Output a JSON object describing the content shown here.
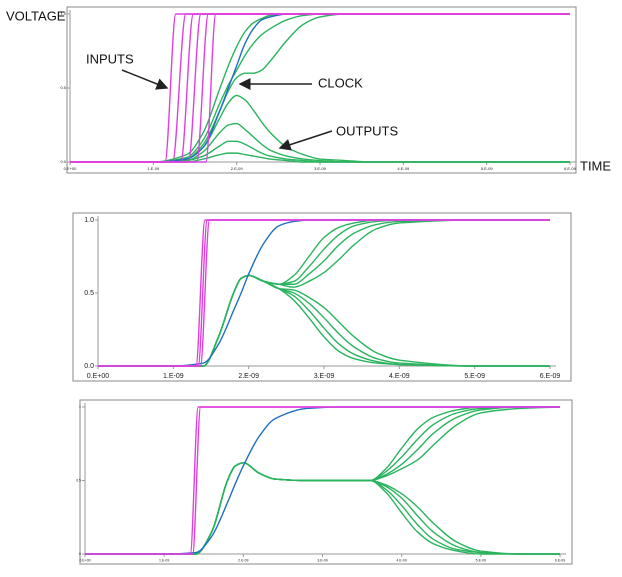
{
  "chart_data": [
    {
      "type": "line",
      "ylabel": "VOLTAGE",
      "xlabel": "TIME",
      "annotations": [
        "INPUTS",
        "CLOCK",
        "OUTPUTS"
      ],
      "xlim": [
        0,
        6e-09
      ],
      "ylim": [
        0,
        1
      ],
      "xticks": [
        {
          "value": 0,
          "label": "0.E+00"
        },
        {
          "value": 1e-09,
          "label": "1.E-09"
        },
        {
          "value": 2e-09,
          "label": "2.E-09"
        },
        {
          "value": 3e-09,
          "label": "3.E-09"
        },
        {
          "value": 4e-09,
          "label": "4.E-09"
        },
        {
          "value": 5e-09,
          "label": "5.E-09"
        },
        {
          "value": 6e-09,
          "label": "6.E-09"
        }
      ],
      "yticks": [
        {
          "value": 0,
          "label": "0.0"
        },
        0.5,
        {
          "value": 1,
          "label": "1.0"
        }
      ],
      "x": [
        0,
        1e-09,
        1.4e-09,
        1.6e-09,
        1.8e-09,
        1.9e-09,
        2e-09,
        2.1e-09,
        2.2e-09,
        2.3e-09,
        2.4e-09,
        2.6e-09,
        2.8e-09,
        3e-09,
        3.3e-09,
        3.6e-09,
        4e-09,
        5e-09,
        6e-09
      ],
      "series": [
        {
          "color": "#2bb35e",
          "values": [
            0,
            0,
            0.05,
            0.2,
            0.5,
            0.65,
            0.78,
            0.88,
            0.94,
            0.97,
            0.99,
            1,
            1,
            1,
            1,
            1,
            1,
            1,
            1
          ]
        },
        {
          "color": "#2bb35e",
          "values": [
            0,
            0,
            0.03,
            0.15,
            0.4,
            0.52,
            0.62,
            0.72,
            0.8,
            0.86,
            0.9,
            0.96,
            0.99,
            1,
            1,
            1,
            1,
            1,
            1
          ]
        },
        {
          "color": "#2bb35e",
          "values": [
            0,
            0,
            0.02,
            0.12,
            0.35,
            0.48,
            0.57,
            0.6,
            0.6,
            0.62,
            0.68,
            0.82,
            0.93,
            0.98,
            1,
            1,
            1,
            1,
            1
          ]
        },
        {
          "color": "#2bb35e",
          "values": [
            0,
            0,
            0.02,
            0.1,
            0.3,
            0.4,
            0.45,
            0.42,
            0.35,
            0.27,
            0.2,
            0.1,
            0.05,
            0.02,
            0.01,
            0,
            0,
            0,
            0
          ]
        },
        {
          "color": "#2bb35e",
          "values": [
            0,
            0,
            0.01,
            0.07,
            0.2,
            0.25,
            0.26,
            0.22,
            0.17,
            0.12,
            0.08,
            0.04,
            0.02,
            0.01,
            0,
            0,
            0,
            0,
            0
          ]
        },
        {
          "color": "#2bb35e",
          "values": [
            0,
            0,
            0.01,
            0.04,
            0.11,
            0.14,
            0.14,
            0.12,
            0.09,
            0.06,
            0.04,
            0.02,
            0.01,
            0,
            0,
            0,
            0,
            0,
            0
          ]
        },
        {
          "color": "#2bb35e",
          "values": [
            0,
            0,
            0,
            0.02,
            0.05,
            0.06,
            0.06,
            0.05,
            0.04,
            0.03,
            0.02,
            0.01,
            0,
            0,
            0,
            0,
            0,
            0,
            0
          ]
        },
        {
          "color": "#1f6fbf",
          "values": [
            0,
            0,
            0.02,
            0.1,
            0.35,
            0.5,
            0.65,
            0.8,
            0.9,
            0.96,
            0.98,
            1,
            1,
            1,
            1,
            1,
            1,
            1,
            1
          ]
        },
        {
          "color": "#e040e0",
          "x": [
            0,
            1.14e-09,
            1.27e-09,
            6e-09
          ],
          "values": [
            0,
            0,
            1,
            1
          ]
        },
        {
          "color": "#e040e0",
          "x": [
            0,
            1.23e-09,
            1.39e-09,
            6e-09
          ],
          "values": [
            0,
            0,
            1,
            1
          ]
        },
        {
          "color": "#e040e0",
          "x": [
            0,
            1.33e-09,
            1.48e-09,
            6e-09
          ],
          "values": [
            0,
            0,
            1,
            1
          ]
        },
        {
          "color": "#e040e0",
          "x": [
            0,
            1.42e-09,
            1.57e-09,
            6e-09
          ],
          "values": [
            0,
            0,
            1,
            1
          ]
        },
        {
          "color": "#e040e0",
          "x": [
            0,
            1.52e-09,
            1.66e-09,
            6e-09
          ],
          "values": [
            0,
            0,
            1,
            1
          ]
        },
        {
          "color": "#e040e0",
          "x": [
            0,
            1.63e-09,
            1.75e-09,
            6e-09
          ],
          "values": [
            0,
            0,
            1,
            1
          ]
        }
      ]
    },
    {
      "type": "line",
      "xlim": [
        0,
        6e-09
      ],
      "ylim": [
        0,
        1
      ],
      "xticks": [
        {
          "value": 0,
          "label": "0.E+00"
        },
        {
          "value": 1e-09,
          "label": "1.E-09"
        },
        {
          "value": 2e-09,
          "label": "2.E-09"
        },
        {
          "value": 3e-09,
          "label": "3.E-09"
        },
        {
          "value": 4e-09,
          "label": "4.E-09"
        },
        {
          "value": 5e-09,
          "label": "5.E-09"
        },
        {
          "value": 6e-09,
          "label": "6.E-09"
        }
      ],
      "yticks": [
        {
          "value": 0,
          "label": "0.0"
        },
        0.5,
        {
          "value": 1,
          "label": "1.0"
        }
      ],
      "x": [
        0,
        1e-09,
        1.4e-09,
        1.6e-09,
        1.8e-09,
        1.9e-09,
        2e-09,
        2.2e-09,
        2.4e-09,
        2.6e-09,
        2.8e-09,
        3e-09,
        3.2e-09,
        3.4e-09,
        3.7e-09,
        4e-09,
        5e-09,
        6e-09
      ],
      "series": [
        {
          "color": "#2bb35e",
          "values": [
            0,
            0,
            0,
            0.2,
            0.5,
            0.6,
            0.62,
            0.58,
            0.56,
            0.62,
            0.75,
            0.88,
            0.95,
            0.98,
            1,
            1,
            1,
            1
          ]
        },
        {
          "color": "#2bb35e",
          "values": [
            0,
            0,
            0,
            0.2,
            0.5,
            0.6,
            0.62,
            0.58,
            0.56,
            0.58,
            0.68,
            0.8,
            0.9,
            0.96,
            0.99,
            1,
            1,
            1
          ]
        },
        {
          "color": "#2bb35e",
          "values": [
            0,
            0,
            0,
            0.2,
            0.5,
            0.6,
            0.62,
            0.58,
            0.56,
            0.56,
            0.63,
            0.72,
            0.83,
            0.91,
            0.97,
            0.99,
            1,
            1
          ]
        },
        {
          "color": "#2bb35e",
          "values": [
            0,
            0,
            0,
            0.2,
            0.5,
            0.6,
            0.62,
            0.58,
            0.56,
            0.54,
            0.58,
            0.64,
            0.73,
            0.83,
            0.94,
            0.98,
            1,
            1
          ]
        },
        {
          "color": "#2bb35e",
          "values": [
            0,
            0,
            0,
            0.2,
            0.5,
            0.6,
            0.62,
            0.58,
            0.53,
            0.45,
            0.33,
            0.2,
            0.1,
            0.05,
            0.02,
            0.01,
            0,
            0
          ]
        },
        {
          "color": "#2bb35e",
          "values": [
            0,
            0,
            0,
            0.2,
            0.5,
            0.6,
            0.62,
            0.58,
            0.53,
            0.48,
            0.38,
            0.26,
            0.15,
            0.08,
            0.03,
            0.01,
            0,
            0
          ]
        },
        {
          "color": "#2bb35e",
          "values": [
            0,
            0,
            0,
            0.2,
            0.5,
            0.6,
            0.62,
            0.58,
            0.53,
            0.5,
            0.43,
            0.33,
            0.22,
            0.13,
            0.05,
            0.02,
            0,
            0
          ]
        },
        {
          "color": "#2bb35e",
          "values": [
            0,
            0,
            0,
            0.2,
            0.5,
            0.6,
            0.62,
            0.58,
            0.53,
            0.52,
            0.47,
            0.4,
            0.3,
            0.2,
            0.09,
            0.04,
            0,
            0
          ]
        },
        {
          "color": "#1f6fbf",
          "values": [
            0,
            0,
            0.02,
            0.15,
            0.38,
            0.5,
            0.63,
            0.84,
            0.96,
            0.99,
            1,
            1,
            1,
            1,
            1,
            1,
            1,
            1
          ]
        },
        {
          "color": "#e040e0",
          "x": [
            0,
            1.3e-09,
            1.42e-09,
            6e-09
          ],
          "values": [
            0,
            0,
            1,
            1
          ]
        },
        {
          "color": "#e040e0",
          "x": [
            0,
            1.33e-09,
            1.45e-09,
            6e-09
          ],
          "values": [
            0,
            0,
            1,
            1
          ]
        },
        {
          "color": "#e040e0",
          "x": [
            0,
            1.36e-09,
            1.48e-09,
            6e-09
          ],
          "values": [
            0,
            0,
            1,
            1
          ]
        }
      ]
    },
    {
      "type": "line",
      "xlim": [
        0,
        6e-09
      ],
      "ylim": [
        0,
        1
      ],
      "xticks": [
        {
          "value": 0,
          "label": "0.E+00"
        },
        {
          "value": 1e-09,
          "label": "1.E-09"
        },
        {
          "value": 2e-09,
          "label": "2.E-09"
        },
        {
          "value": 3e-09,
          "label": "3.E-09"
        },
        {
          "value": 4e-09,
          "label": "4.E-09"
        },
        {
          "value": 5e-09,
          "label": "5.E-09"
        },
        {
          "value": 6e-09,
          "label": "6.E-09"
        }
      ],
      "yticks": [
        0,
        0.5,
        1
      ],
      "x": [
        0,
        1e-09,
        1.4e-09,
        1.6e-09,
        1.8e-09,
        1.9e-09,
        2e-09,
        2.2e-09,
        2.4e-09,
        2.8e-09,
        3.2e-09,
        3.6e-09,
        3.8e-09,
        4e-09,
        4.2e-09,
        4.4e-09,
        4.7e-09,
        5e-09,
        5.5e-09,
        6e-09
      ],
      "series": [
        {
          "color": "#2bb35e",
          "values": [
            0,
            0,
            0,
            0.15,
            0.5,
            0.6,
            0.62,
            0.55,
            0.51,
            0.5,
            0.5,
            0.5,
            0.58,
            0.72,
            0.85,
            0.93,
            0.98,
            1,
            1,
            1
          ]
        },
        {
          "color": "#2bb35e",
          "values": [
            0,
            0,
            0,
            0.15,
            0.5,
            0.6,
            0.62,
            0.55,
            0.51,
            0.5,
            0.5,
            0.5,
            0.56,
            0.66,
            0.78,
            0.88,
            0.96,
            0.99,
            1,
            1
          ]
        },
        {
          "color": "#2bb35e",
          "values": [
            0,
            0,
            0,
            0.15,
            0.5,
            0.6,
            0.62,
            0.55,
            0.51,
            0.5,
            0.5,
            0.5,
            0.54,
            0.61,
            0.71,
            0.82,
            0.93,
            0.98,
            1,
            1
          ]
        },
        {
          "color": "#2bb35e",
          "values": [
            0,
            0,
            0,
            0.15,
            0.5,
            0.6,
            0.62,
            0.55,
            0.51,
            0.5,
            0.5,
            0.5,
            0.53,
            0.58,
            0.64,
            0.74,
            0.88,
            0.96,
            0.99,
            1
          ]
        },
        {
          "color": "#2bb35e",
          "values": [
            0,
            0,
            0,
            0.15,
            0.5,
            0.6,
            0.62,
            0.55,
            0.51,
            0.5,
            0.5,
            0.5,
            0.42,
            0.28,
            0.15,
            0.07,
            0.02,
            0,
            0,
            0
          ]
        },
        {
          "color": "#2bb35e",
          "values": [
            0,
            0,
            0,
            0.15,
            0.5,
            0.6,
            0.62,
            0.55,
            0.51,
            0.5,
            0.5,
            0.5,
            0.44,
            0.33,
            0.2,
            0.1,
            0.03,
            0.01,
            0,
            0
          ]
        },
        {
          "color": "#2bb35e",
          "values": [
            0,
            0,
            0,
            0.15,
            0.5,
            0.6,
            0.62,
            0.55,
            0.51,
            0.5,
            0.5,
            0.5,
            0.46,
            0.38,
            0.26,
            0.15,
            0.05,
            0.01,
            0,
            0
          ]
        },
        {
          "color": "#2bb35e",
          "values": [
            0,
            0,
            0,
            0.15,
            0.5,
            0.6,
            0.62,
            0.55,
            0.51,
            0.5,
            0.5,
            0.5,
            0.47,
            0.41,
            0.32,
            0.21,
            0.08,
            0.02,
            0,
            0
          ]
        },
        {
          "color": "#1f6fbf",
          "values": [
            0,
            0,
            0.01,
            0.12,
            0.35,
            0.48,
            0.6,
            0.8,
            0.92,
            0.99,
            1,
            1,
            1,
            1,
            1,
            1,
            1,
            1,
            1,
            1
          ]
        },
        {
          "color": "#e040e0",
          "x": [
            0,
            1.33e-09,
            1.43e-09,
            6e-09
          ],
          "values": [
            0,
            0,
            1,
            1
          ]
        },
        {
          "color": "#e040e0",
          "x": [
            0,
            1.36e-09,
            1.46e-09,
            6e-09
          ],
          "values": [
            0,
            0,
            1,
            1
          ]
        }
      ]
    }
  ]
}
